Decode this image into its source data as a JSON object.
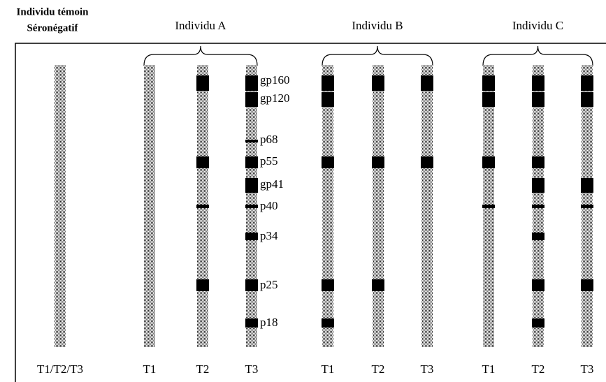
{
  "control": {
    "title": [
      "Individu témoin",
      "Séronégatif"
    ],
    "lane": "T1/T2/T3"
  },
  "band_labels": [
    "gp160",
    "gp120",
    "p68",
    "p55",
    "gp41",
    "p40",
    "p34",
    "p25",
    "p18"
  ],
  "groups": [
    {
      "name": "Individu A",
      "lanes": [
        {
          "label": "T1",
          "bands": []
        },
        {
          "label": "T2",
          "bands": [
            "gp160",
            "p55",
            "p40",
            "p25"
          ]
        },
        {
          "label": "T3",
          "bands": [
            "gp160",
            "gp120",
            "p68",
            "p55",
            "gp41",
            "p40",
            "p34",
            "p25",
            "p18"
          ]
        }
      ]
    },
    {
      "name": "Individu B",
      "lanes": [
        {
          "label": "T1",
          "bands": [
            "gp160",
            "gp120",
            "p55",
            "p25",
            "p18"
          ]
        },
        {
          "label": "T2",
          "bands": [
            "gp160",
            "p55",
            "p25"
          ]
        },
        {
          "label": "T3",
          "bands": [
            "gp160",
            "p55"
          ]
        }
      ]
    },
    {
      "name": "Individu C",
      "lanes": [
        {
          "label": "T1",
          "bands": [
            "gp160",
            "gp120",
            "p55",
            "p40"
          ]
        },
        {
          "label": "T2",
          "bands": [
            "gp160",
            "gp120",
            "p55",
            "gp41",
            "p40",
            "p34",
            "p25",
            "p18"
          ]
        },
        {
          "label": "T3",
          "bands": [
            "gp160",
            "gp120",
            "gp41",
            "p40",
            "p25"
          ]
        }
      ]
    }
  ]
}
